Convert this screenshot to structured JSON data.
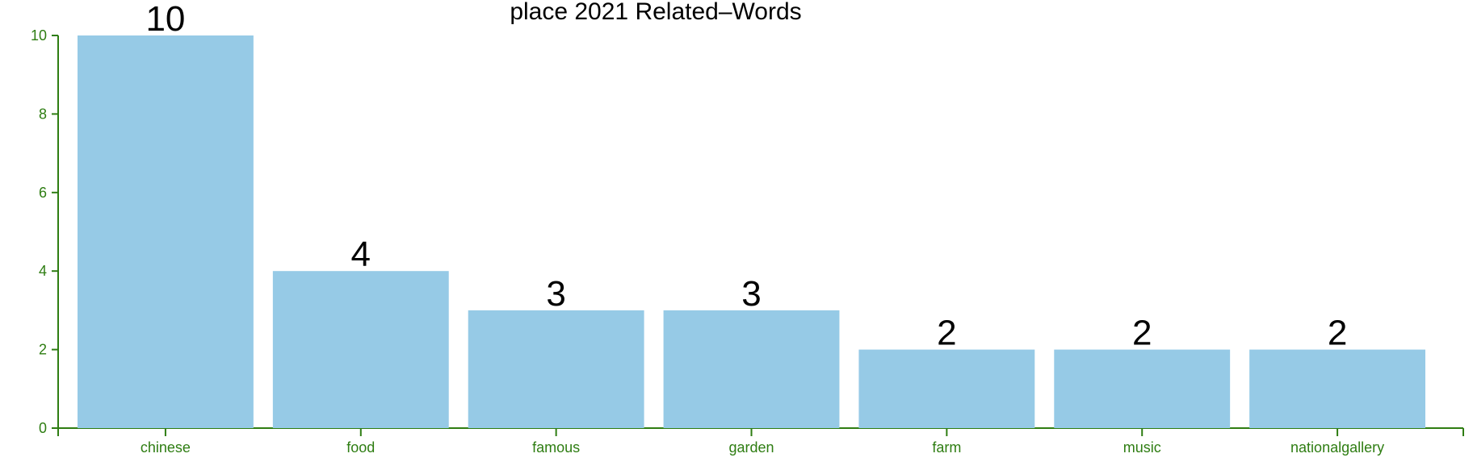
{
  "chart_data": {
    "type": "bar",
    "title": "place 2021 Related–Words",
    "xlabel": "",
    "ylabel": "",
    "categories": [
      "chinese",
      "food",
      "famous",
      "garden",
      "farm",
      "music",
      "nationalgallery"
    ],
    "values": [
      10,
      4,
      3,
      3,
      2,
      2,
      2
    ],
    "ylim": [
      0,
      10
    ],
    "yticks": [
      0,
      2,
      4,
      6,
      8,
      10
    ],
    "grid": false,
    "colors": {
      "bar": "#96cae6",
      "axis": "#2e7d12",
      "text": "#000000"
    }
  }
}
